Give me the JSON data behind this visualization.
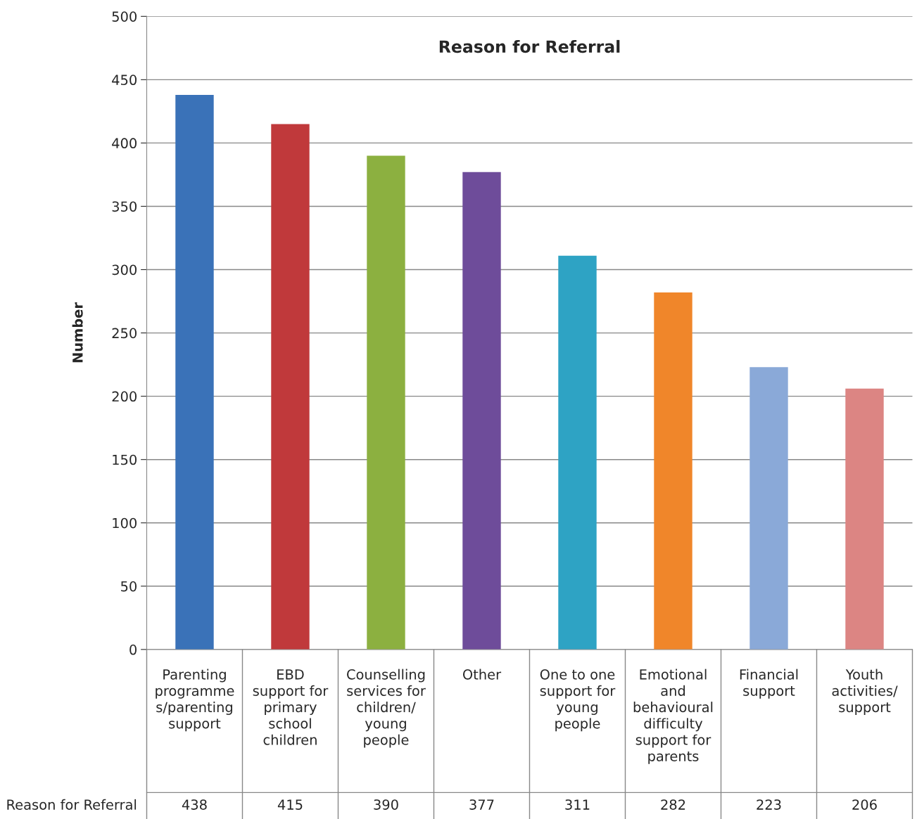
{
  "chart_data": {
    "type": "bar",
    "title": "Reason for Referral",
    "ylabel": "Number",
    "categories": [
      "Parenting\nprogramme\ns/parenting\nsupport",
      "EBD\nsupport for\nprimary\nschool\nchildren",
      "Counselling\nservices for\nchildren/\nyoung\npeople",
      "Other",
      "One to one\nsupport for\nyoung\npeople",
      "Emotional\nand\nbehavioural\ndifficulty\nsupport for\nparents",
      "Financial\nsupport",
      "Youth\nactivities/\nsupport"
    ],
    "series": [
      {
        "name": "Reason for Referral",
        "colors": [
          "#3a72b8",
          "#c0393b",
          "#8cb040",
          "#6e4c9a",
          "#2ea3c4",
          "#f0862a",
          "#8aa9d8",
          "#dc8583"
        ],
        "values": [
          438,
          415,
          390,
          377,
          311,
          282,
          223,
          206
        ]
      }
    ],
    "ylim": [
      0,
      500
    ],
    "yticks": [
      0,
      50,
      100,
      150,
      200,
      250,
      300,
      350,
      400,
      450,
      500
    ],
    "grid": "y",
    "data_labels": true
  }
}
